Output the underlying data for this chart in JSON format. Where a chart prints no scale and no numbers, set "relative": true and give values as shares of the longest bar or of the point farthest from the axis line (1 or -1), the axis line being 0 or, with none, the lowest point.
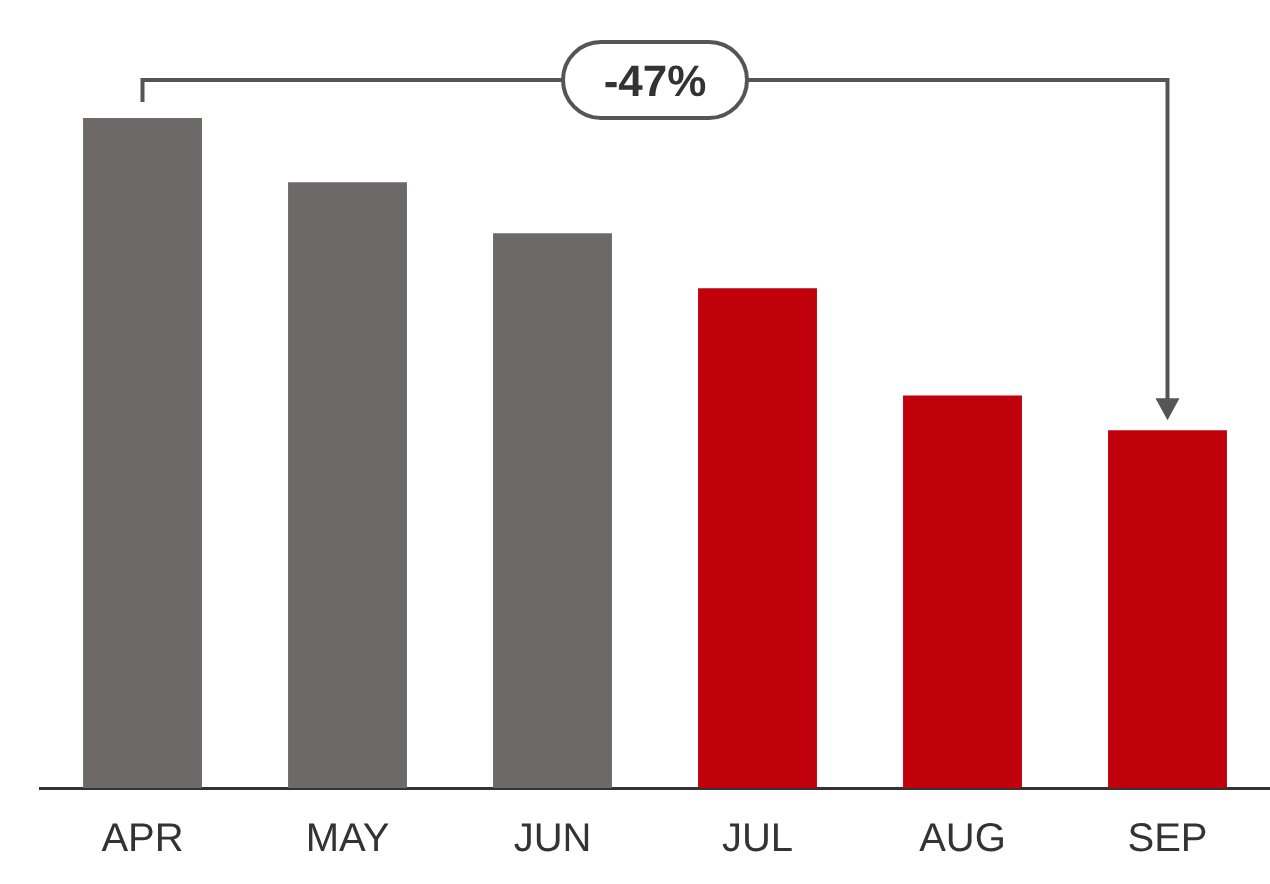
{
  "chart_data": {
    "type": "bar",
    "relative": true,
    "categories": [
      "APR",
      "MAY",
      "JUN",
      "JUL",
      "AUG",
      "SEP"
    ],
    "values": [
      1,
      0.904,
      0.828,
      0.746,
      0.586,
      0.534
    ],
    "colors": [
      "#6d6968",
      "#6d6968",
      "#6d6968",
      "#c0000b",
      "#c0000b",
      "#c0000b"
    ],
    "annotations": [
      "-47%"
    ]
  }
}
